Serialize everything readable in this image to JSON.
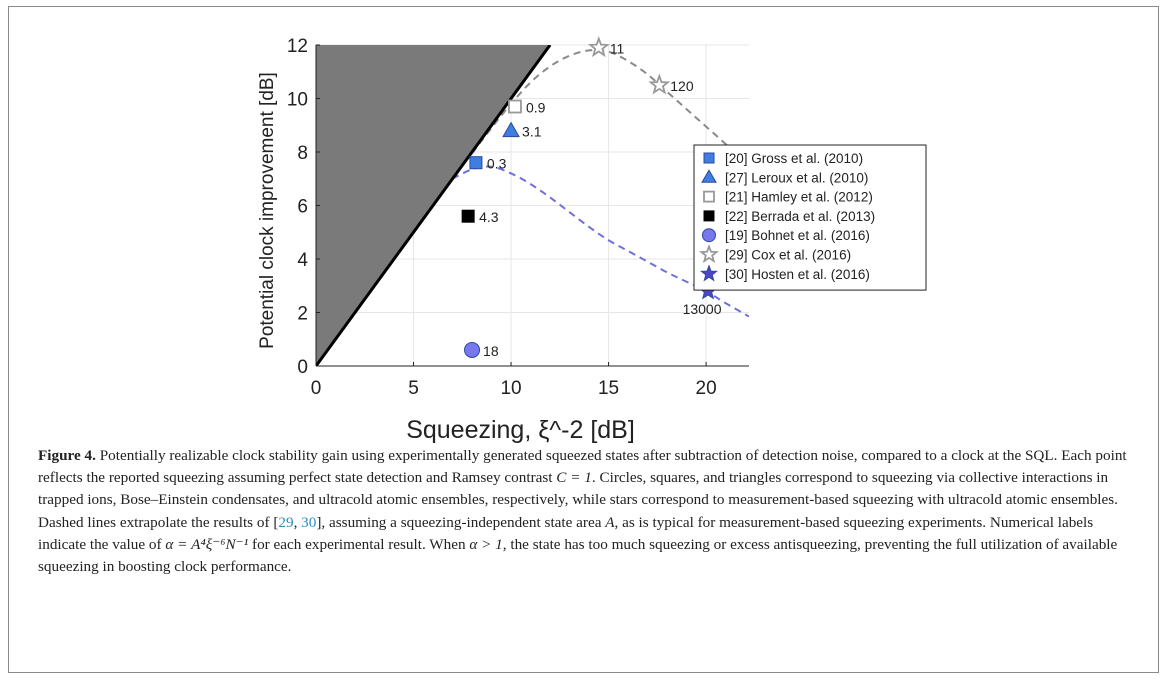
{
  "chart_data": {
    "type": "scatter",
    "xlabel": "Squeezing, ξ^-2 [dB]",
    "ylabel": "Potential clock improvement [dB]",
    "xlim": [
      0,
      22.2
    ],
    "ylim": [
      0,
      12
    ],
    "xticks": [
      0,
      5,
      10,
      15,
      20
    ],
    "yticks": [
      0,
      2,
      4,
      6,
      8,
      10,
      12
    ],
    "grid": true,
    "legend_position": "right",
    "shaded_region": {
      "description": "region above y = x",
      "color": "#7a7a7a"
    },
    "reference_line": {
      "type": "y=x",
      "x": [
        0,
        12
      ],
      "y": [
        0,
        12
      ],
      "color": "#000000"
    },
    "series": [
      {
        "name": "[20] Gross et al. (2010)",
        "marker": "square",
        "style": "filled",
        "color": "#3d7ee0",
        "points": [
          {
            "x": 8.2,
            "y": 7.6,
            "label": "0.3"
          }
        ]
      },
      {
        "name": "[27] Leroux et al. (2010)",
        "marker": "triangle",
        "style": "filled",
        "color": "#3d7ee0",
        "points": [
          {
            "x": 10.0,
            "y": 8.8,
            "label": "3.1"
          }
        ]
      },
      {
        "name": "[21] Hamley et al. (2012)",
        "marker": "square",
        "style": "open",
        "color": "#999999",
        "points": [
          {
            "x": 10.2,
            "y": 9.7,
            "label": "0.9"
          }
        ]
      },
      {
        "name": "[22] Berrada et al. (2013)",
        "marker": "square",
        "style": "filled",
        "color": "#000000",
        "points": [
          {
            "x": 7.8,
            "y": 5.6,
            "label": "4.3"
          }
        ]
      },
      {
        "name": "[19] Bohnet et al. (2016)",
        "marker": "circle",
        "style": "filled",
        "color": "#7777ee",
        "points": [
          {
            "x": 8.0,
            "y": 0.6,
            "label": "18"
          }
        ]
      },
      {
        "name": "[29] Cox et al. (2016)",
        "marker": "star",
        "style": "open",
        "color": "#999999",
        "points": [
          {
            "x": 14.5,
            "y": 11.9,
            "label": "11"
          },
          {
            "x": 17.6,
            "y": 10.5,
            "label": "120"
          }
        ]
      },
      {
        "name": "[30] Hosten et al. (2016)",
        "marker": "star",
        "style": "filled",
        "color": "#5045c8",
        "points": [
          {
            "x": 20.1,
            "y": 2.8,
            "label": "13000"
          }
        ]
      }
    ],
    "dashed_curves": [
      {
        "color": "#8a8a8a",
        "points": [
          [
            8,
            7.95
          ],
          [
            9,
            8.9
          ],
          [
            10,
            9.8
          ],
          [
            11,
            10.6
          ],
          [
            12,
            11.2
          ],
          [
            13,
            11.6
          ],
          [
            14,
            11.8
          ],
          [
            15,
            11.75
          ],
          [
            16,
            11.4
          ],
          [
            17,
            10.9
          ],
          [
            18,
            10.25
          ],
          [
            19,
            9.6
          ],
          [
            20,
            8.95
          ],
          [
            21,
            8.3
          ],
          [
            22.2,
            7.5
          ]
        ]
      },
      {
        "color": "#7070dd",
        "points": [
          [
            7,
            7.0
          ],
          [
            8,
            7.35
          ],
          [
            9,
            7.45
          ],
          [
            10,
            7.2
          ],
          [
            11,
            6.8
          ],
          [
            12,
            6.3
          ],
          [
            13,
            5.75
          ],
          [
            14,
            5.2
          ],
          [
            15,
            4.7
          ],
          [
            16,
            4.3
          ],
          [
            17,
            3.9
          ],
          [
            18,
            3.5
          ],
          [
            19,
            3.15
          ],
          [
            20,
            2.8
          ],
          [
            21,
            2.35
          ],
          [
            22.2,
            1.85
          ]
        ]
      }
    ]
  },
  "caption": {
    "label": "Figure 4.",
    "text_1": " Potentially realizable clock stability gain using experimentally generated squeezed states after subtraction of detection noise, compared to a clock at the SQL. Each point reflects the reported squeezing assuming perfect state detection and Ramsey contrast ",
    "c_eq": "C = 1",
    "text_2": ". Circles, squares, and triangles correspond to squeezing via collective interactions in trapped ions, Bose–Einstein condensates, and ultracold atomic ensembles, respectively, while stars correspond to measurement-based squeezing with ultracold atomic ensembles. Dashed lines extrapolate the results of [",
    "ref_29": "29",
    "ref_sep": ", ",
    "ref_30": "30",
    "text_3": "], assuming a squeezing-independent state area ",
    "area_symbol": "A",
    "text_4": ", as is typical for measurement-based squeezing experiments. Numerical labels indicate the value of ",
    "alpha_eq": "α = A⁴ξ⁻⁶N⁻¹",
    "text_5": " for each experimental result. When ",
    "alpha_gt": "α > 1",
    "text_6": ", the state has too much squeezing or excess antisqueezing, preventing the full utilization of available squeezing in boosting clock performance."
  }
}
